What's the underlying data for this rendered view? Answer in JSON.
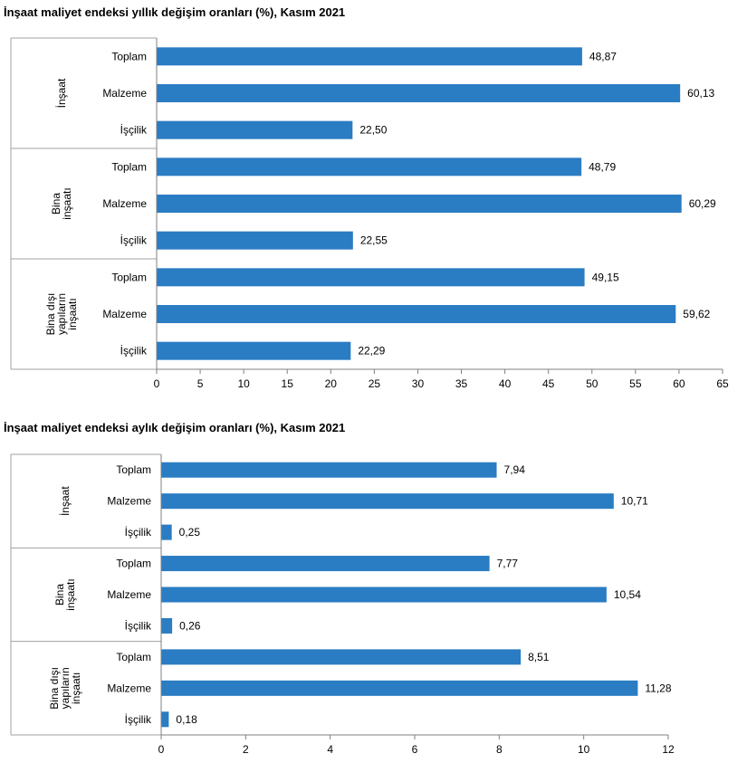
{
  "chart_data": [
    {
      "type": "bar",
      "orientation": "horizontal",
      "title": "İnşaat maliyet endeksi yıllık değişim oranları (%), Kasım 2021",
      "groups": [
        {
          "name": [
            "İnşaat"
          ],
          "categories": [
            "Toplam",
            "Malzeme",
            "İşçilik"
          ],
          "values": [
            48.87,
            60.13,
            22.5
          ],
          "labels": [
            "48,87",
            "60,13",
            "22,50"
          ]
        },
        {
          "name": [
            "Bina",
            "inşaatı"
          ],
          "categories": [
            "Toplam",
            "Malzeme",
            "İşçilik"
          ],
          "values": [
            48.79,
            60.29,
            22.55
          ],
          "labels": [
            "48,79",
            "60,29",
            "22,55"
          ]
        },
        {
          "name": [
            "Bina dışı",
            "yapıların",
            "inşaatı"
          ],
          "categories": [
            "Toplam",
            "Malzeme",
            "İşçilik"
          ],
          "values": [
            49.15,
            59.62,
            22.29
          ],
          "labels": [
            "49,15",
            "59,62",
            "22,29"
          ]
        }
      ],
      "xlim": [
        0,
        65
      ],
      "xticks": [
        0,
        5,
        10,
        15,
        20,
        25,
        30,
        35,
        40,
        45,
        50,
        55,
        60,
        65
      ],
      "bar_color": "#2a7cc3",
      "grid": false
    },
    {
      "type": "bar",
      "orientation": "horizontal",
      "title": "İnşaat maliyet endeksi aylık değişim oranları (%), Kasım 2021",
      "groups": [
        {
          "name": [
            "İnşaat"
          ],
          "categories": [
            "Toplam",
            "Malzeme",
            "İşçilik"
          ],
          "values": [
            7.94,
            10.71,
            0.25
          ],
          "labels": [
            "7,94",
            "10,71",
            "0,25"
          ]
        },
        {
          "name": [
            "Bina",
            "inşaatı"
          ],
          "categories": [
            "Toplam",
            "Malzeme",
            "İşçilik"
          ],
          "values": [
            7.77,
            10.54,
            0.26
          ],
          "labels": [
            "7,77",
            "10,54",
            "0,26"
          ]
        },
        {
          "name": [
            "Bina dışı",
            "yapıların",
            "inşaatı"
          ],
          "categories": [
            "Toplam",
            "Malzeme",
            "İşçilik"
          ],
          "values": [
            8.51,
            11.28,
            0.18
          ],
          "labels": [
            "8,51",
            "11,28",
            "0,18"
          ]
        }
      ],
      "xlim": [
        0,
        12
      ],
      "xticks": [
        0,
        2,
        4,
        6,
        8,
        10,
        12
      ],
      "bar_color": "#2a7cc3",
      "grid": false
    }
  ]
}
